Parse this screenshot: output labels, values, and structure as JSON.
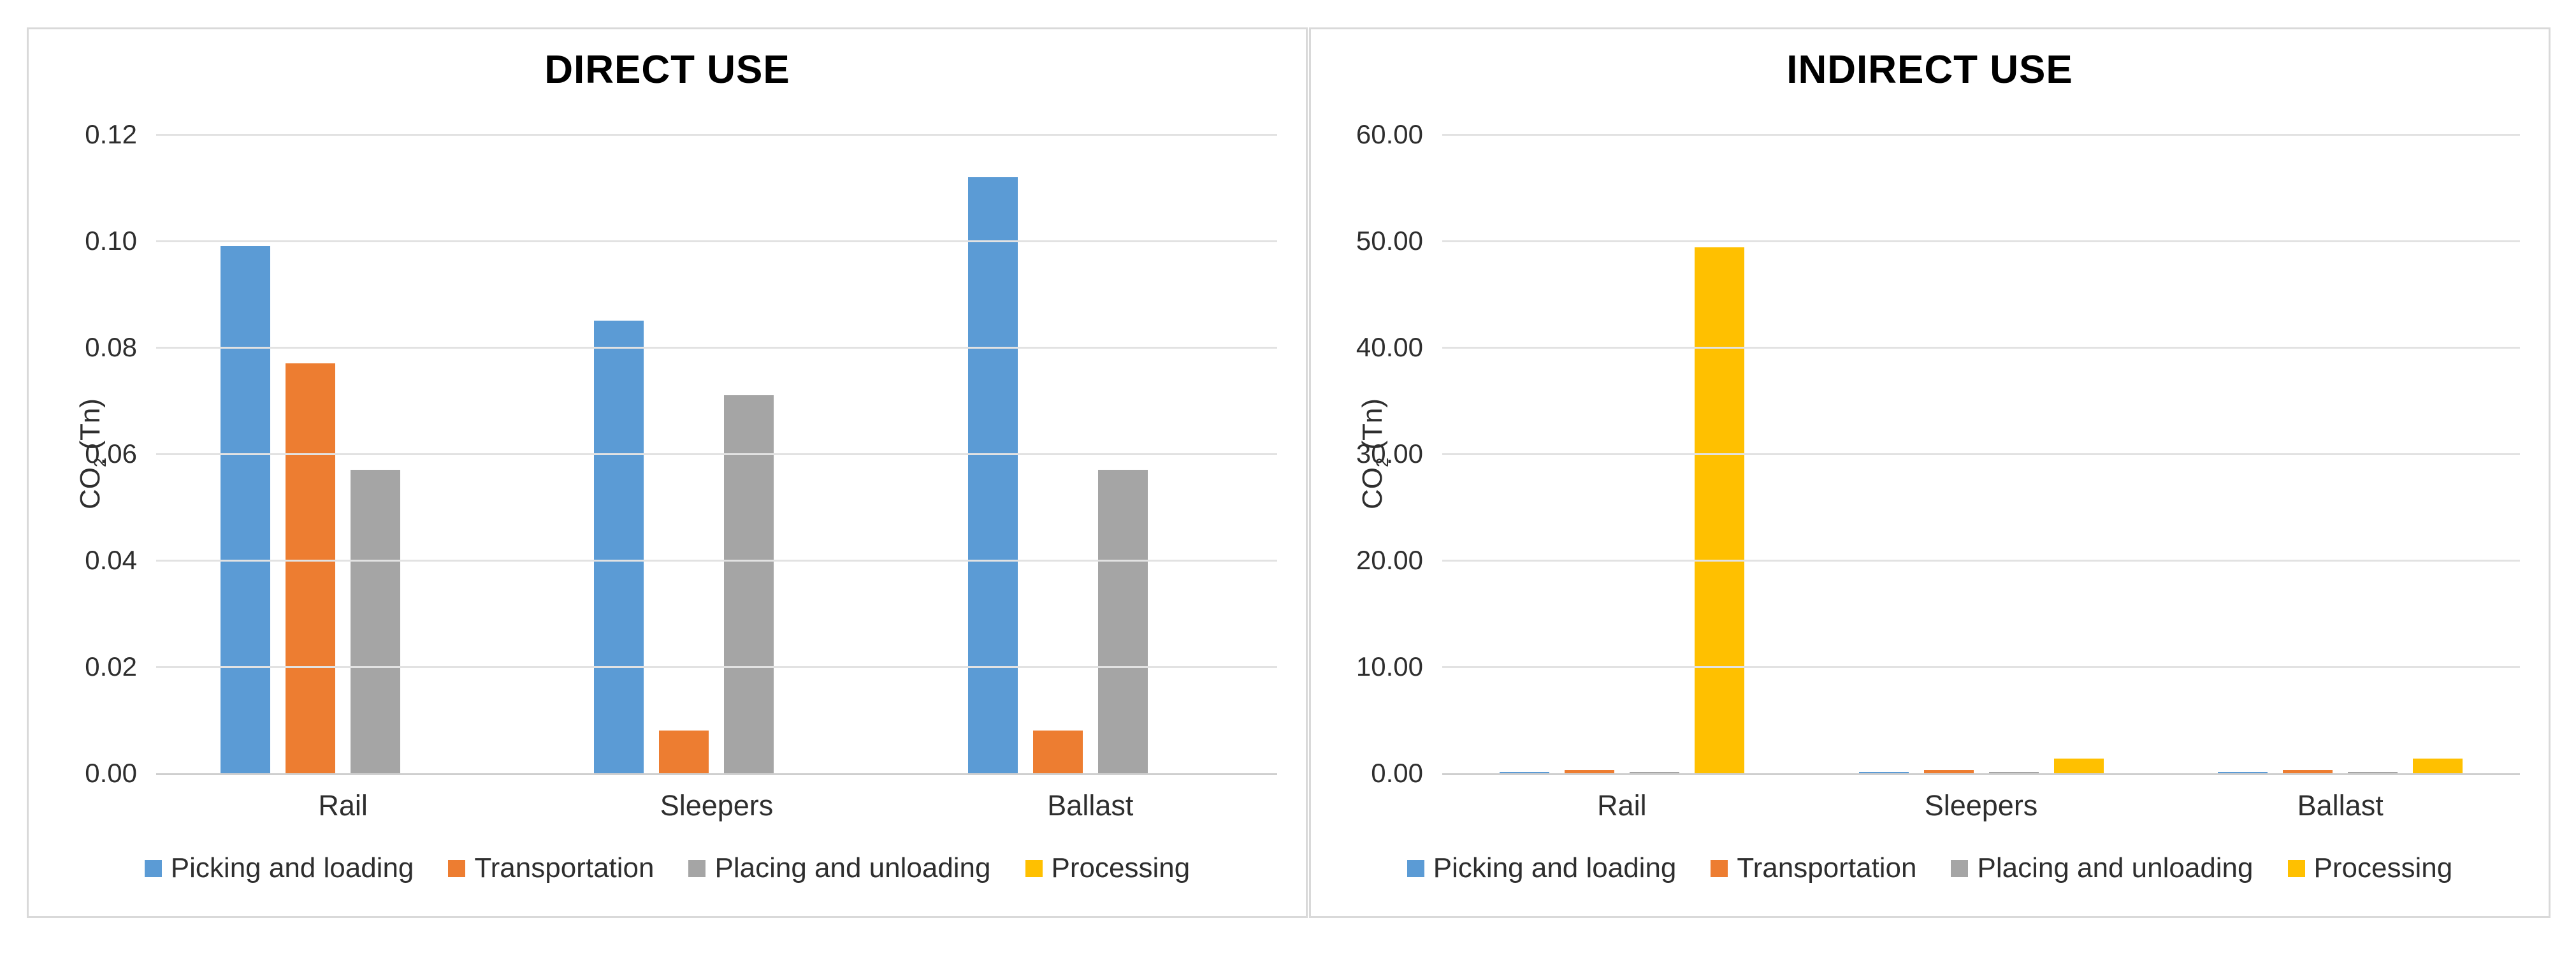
{
  "chart_data": [
    {
      "type": "bar",
      "title": "DIRECT USE",
      "ylabel_main": "CO",
      "ylabel_sub": "2",
      "ylabel_rest": " (Tn)",
      "categories": [
        "Rail",
        "Sleepers",
        "Ballast"
      ],
      "series": [
        {
          "name": "Picking and loading",
          "color": "#5B9BD5",
          "values": [
            0.099,
            0.085,
            0.112
          ]
        },
        {
          "name": "Transportation",
          "color": "#ED7D31",
          "values": [
            0.077,
            0.008,
            0.008
          ]
        },
        {
          "name": "Placing and unloading",
          "color": "#A5A5A5",
          "values": [
            0.057,
            0.071,
            0.057
          ]
        },
        {
          "name": "Processing",
          "color": "#FFC000",
          "values": [
            0,
            0,
            0
          ]
        }
      ],
      "ylim": [
        0,
        0.12
      ],
      "yticks": [
        {
          "value": 0,
          "label": "0.00"
        },
        {
          "value": 0.02,
          "label": "0.02"
        },
        {
          "value": 0.04,
          "label": "0.04"
        },
        {
          "value": 0.06,
          "label": "0.06"
        },
        {
          "value": 0.08,
          "label": "0.08"
        },
        {
          "value": 0.1,
          "label": "0.10"
        },
        {
          "value": 0.12,
          "label": "0.12"
        }
      ],
      "grid": true,
      "legend_position": "bottom"
    },
    {
      "type": "bar",
      "title": "INDIRECT USE",
      "ylabel_main": "CO",
      "ylabel_sub": "2",
      "ylabel_rest": " (Tn)",
      "categories": [
        "Rail",
        "Sleepers",
        "Ballast"
      ],
      "series": [
        {
          "name": "Picking and loading",
          "color": "#5B9BD5",
          "values": [
            0.15,
            0.15,
            0.15
          ]
        },
        {
          "name": "Transportation",
          "color": "#ED7D31",
          "values": [
            0.3,
            0.3,
            0.3
          ]
        },
        {
          "name": "Placing and unloading",
          "color": "#A5A5A5",
          "values": [
            0.15,
            0.15,
            0.15
          ]
        },
        {
          "name": "Processing",
          "color": "#FFC000",
          "values": [
            49.4,
            1.4,
            1.4
          ]
        }
      ],
      "ylim": [
        0,
        60
      ],
      "yticks": [
        {
          "value": 0,
          "label": "0.00"
        },
        {
          "value": 10,
          "label": "10.00"
        },
        {
          "value": 20,
          "label": "20.00"
        },
        {
          "value": 30,
          "label": "30.00"
        },
        {
          "value": 40,
          "label": "40.00"
        },
        {
          "value": 50,
          "label": "50.00"
        },
        {
          "value": 60,
          "label": "60.00"
        }
      ],
      "grid": true,
      "legend_position": "bottom"
    }
  ]
}
